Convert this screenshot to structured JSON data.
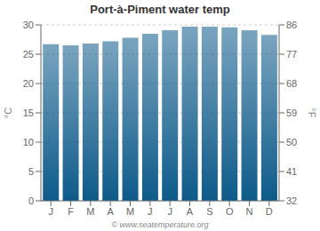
{
  "chart_data": {
    "type": "bar",
    "title": "Port-à-Piment water temp",
    "categories": [
      "J",
      "F",
      "M",
      "A",
      "M",
      "J",
      "J",
      "A",
      "S",
      "O",
      "N",
      "D"
    ],
    "values": [
      26.7,
      26.5,
      26.8,
      27.2,
      27.8,
      28.5,
      29.1,
      29.7,
      29.7,
      29.6,
      29.1,
      28.3
    ],
    "color": "#0d5a8a",
    "ylabel": "°C",
    "ylim": [
      0,
      30
    ],
    "yticks": [
      0,
      5,
      10,
      15,
      20,
      25,
      30
    ],
    "y2label": "°F",
    "y2lim": [
      32,
      86
    ],
    "y2ticks": [
      32,
      41,
      50,
      59,
      68,
      77,
      86
    ],
    "grid": true,
    "annotations": [
      "© www.seatemperature.org"
    ]
  }
}
